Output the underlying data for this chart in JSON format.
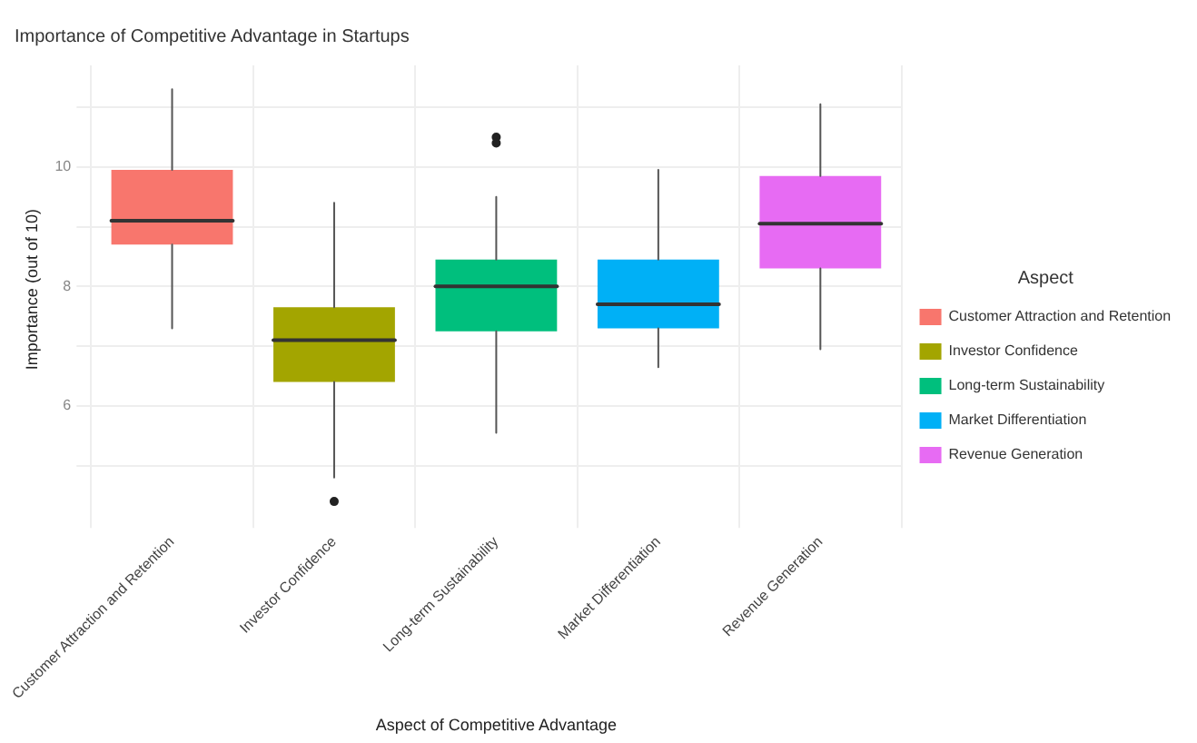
{
  "chart_data": {
    "type": "box",
    "title": "Importance of Competitive Advantage in Startups",
    "xlabel": "Aspect of Competitive Advantage",
    "ylabel": "Importance (out of 10)",
    "legend_title": "Aspect",
    "categories": [
      "Customer Attraction and Retention",
      "Investor Confidence",
      "Long-term Sustainability",
      "Market Differentiation",
      "Revenue Generation"
    ],
    "series": [
      {
        "name": "Customer Attraction and Retention",
        "color": "#f8766d",
        "boxes": [
          {
            "low": 7.3,
            "q1": 8.7,
            "median": 9.1,
            "q3": 9.95,
            "high": 11.3
          },
          null,
          null,
          null,
          null
        ]
      },
      {
        "name": "Investor Confidence",
        "color": "#a3a500",
        "boxes": [
          null,
          {
            "low": 4.8,
            "q1": 6.4,
            "median": 7.1,
            "q3": 7.65,
            "high": 9.4,
            "outliers": [
              4.4
            ]
          },
          null,
          null,
          null
        ]
      },
      {
        "name": "Long-term Sustainability",
        "color": "#00bf7d",
        "boxes": [
          null,
          null,
          {
            "low": 5.55,
            "q1": 7.25,
            "median": 8.0,
            "q3": 8.45,
            "high": 9.5,
            "outliers": [
              10.4,
              10.5
            ]
          },
          null,
          null
        ]
      },
      {
        "name": "Market Differentiation",
        "color": "#00b0f6",
        "boxes": [
          null,
          null,
          null,
          {
            "low": 6.65,
            "q1": 7.3,
            "median": 7.7,
            "q3": 8.45,
            "high": 9.95
          },
          null
        ]
      },
      {
        "name": "Revenue Generation",
        "color": "#e76bf3",
        "boxes": [
          null,
          null,
          null,
          null,
          {
            "low": 6.95,
            "q1": 8.3,
            "median": 9.05,
            "q3": 9.85,
            "high": 11.05
          }
        ]
      }
    ],
    "ylim": [
      4.2,
      11.7
    ],
    "yticks": [
      {
        "value": 5,
        "label": null
      },
      6,
      {
        "value": 7,
        "label": null
      },
      8,
      {
        "value": 9,
        "label": null
      },
      10,
      {
        "value": 11,
        "label": null
      }
    ],
    "grid": true,
    "legend": "right"
  }
}
